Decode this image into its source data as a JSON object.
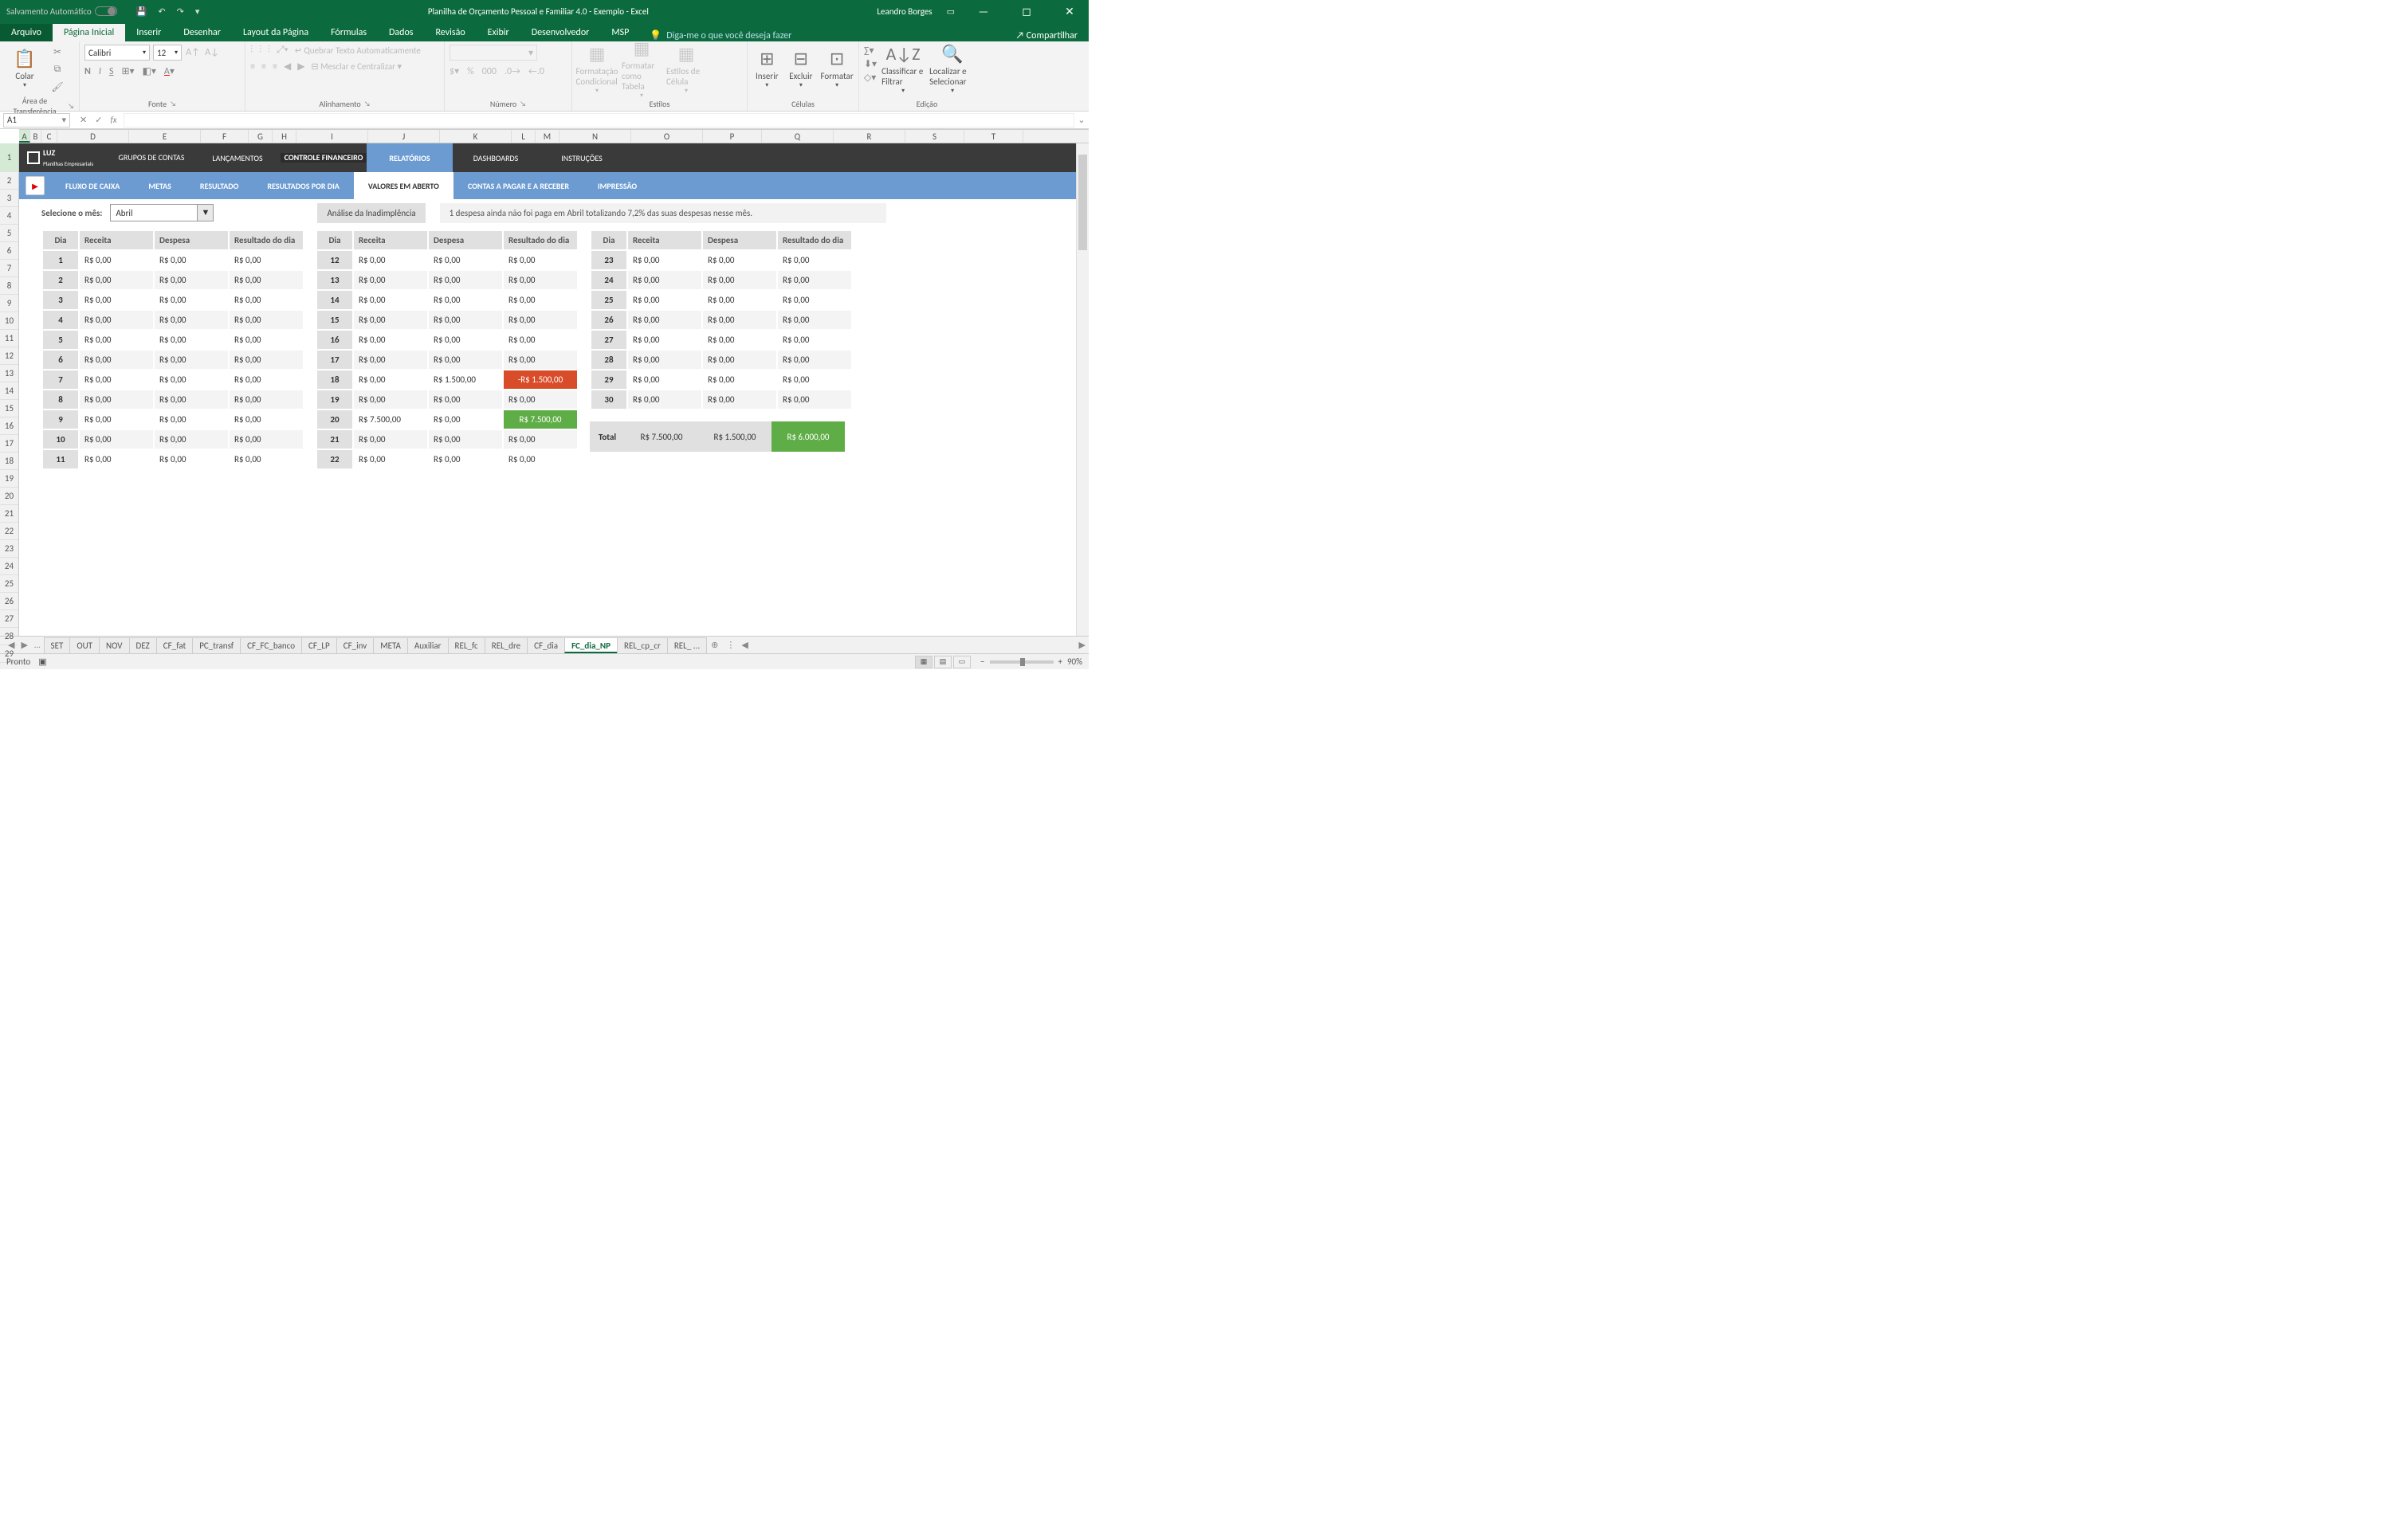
{
  "titlebar": {
    "autosave": "Salvamento Automático",
    "title": "Planilha de Orçamento Pessoal e Familiar 4.0 - Exemplo  -  Excel",
    "user": "Leandro Borges"
  },
  "ribbontabs": {
    "file": "Arquivo",
    "tabs": [
      "Página Inicial",
      "Inserir",
      "Desenhar",
      "Layout da Página",
      "Fórmulas",
      "Dados",
      "Revisão",
      "Exibir",
      "Desenvolvedor",
      "MSP"
    ],
    "active": 0,
    "tellme": "Diga-me o que você deseja fazer",
    "share": "Compartilhar"
  },
  "ribbon": {
    "clipboard": {
      "paste": "Colar",
      "label": "Área de Transferência"
    },
    "font": {
      "name": "Calibri",
      "size": "12",
      "label": "Fonte"
    },
    "align": {
      "wrap": "Quebrar Texto Automaticamente",
      "merge": "Mesclar e Centralizar",
      "label": "Alinhamento"
    },
    "number": {
      "label": "Número"
    },
    "styles": {
      "condfmt": "Formatação Condicional",
      "fmttable": "Formatar como Tabela",
      "cellstyle": "Estilos de Célula",
      "label": "Estilos"
    },
    "cells": {
      "insert": "Inserir",
      "delete": "Excluir",
      "format": "Formatar",
      "label": "Células"
    },
    "editing": {
      "sort": "Classificar e Filtrar",
      "find": "Localizar e Selecionar",
      "label": "Edição"
    }
  },
  "fnbar": {
    "namebox": "A1"
  },
  "cols": [
    "A",
    "B",
    "C",
    "D",
    "E",
    "F",
    "G",
    "H",
    "I",
    "J",
    "K",
    "L",
    "M",
    "N",
    "O",
    "P",
    "Q",
    "R",
    "S",
    "T"
  ],
  "rows": [
    "1",
    "2",
    "3",
    "4",
    "5",
    "6",
    "7",
    "8",
    "9",
    "10",
    "11",
    "12",
    "13",
    "14",
    "15",
    "16",
    "17",
    "18",
    "19",
    "20",
    "21",
    "22",
    "23",
    "24",
    "25",
    "26",
    "27",
    "28",
    "29"
  ],
  "nav1": {
    "logo": "LUZ",
    "logosub": "Planilhas Empresariais",
    "items": [
      "GRUPOS DE CONTAS",
      "LANÇAMENTOS",
      "CONTROLE FINANCEIRO",
      "RELATÓRIOS",
      "DASHBOARDS",
      "INSTRUÇÕES"
    ]
  },
  "nav2": {
    "items": [
      "FLUXO DE CAIXA",
      "METAS",
      "RESULTADO",
      "RESULTADOS POR DIA",
      "VALORES EM ABERTO",
      "CONTAS A PAGAR E A  RECEBER",
      "IMPRESSÃO"
    ],
    "active": 4
  },
  "filter": {
    "label": "Selecione o mês:",
    "value": "Abril",
    "analise": "Análise da Inadimplência",
    "msg": "1 despesa ainda não foi paga em Abril totalizando 7,2% das suas despesas nesse mês."
  },
  "headers": {
    "dia": "Dia",
    "rec": "Receita",
    "desp": "Despesa",
    "res": "Resultado do dia"
  },
  "table1": [
    {
      "d": "1",
      "r": "R$ 0,00",
      "e": "R$ 0,00",
      "s": "R$ 0,00"
    },
    {
      "d": "2",
      "r": "R$ 0,00",
      "e": "R$ 0,00",
      "s": "R$ 0,00"
    },
    {
      "d": "3",
      "r": "R$ 0,00",
      "e": "R$ 0,00",
      "s": "R$ 0,00"
    },
    {
      "d": "4",
      "r": "R$ 0,00",
      "e": "R$ 0,00",
      "s": "R$ 0,00"
    },
    {
      "d": "5",
      "r": "R$ 0,00",
      "e": "R$ 0,00",
      "s": "R$ 0,00"
    },
    {
      "d": "6",
      "r": "R$ 0,00",
      "e": "R$ 0,00",
      "s": "R$ 0,00"
    },
    {
      "d": "7",
      "r": "R$ 0,00",
      "e": "R$ 0,00",
      "s": "R$ 0,00"
    },
    {
      "d": "8",
      "r": "R$ 0,00",
      "e": "R$ 0,00",
      "s": "R$ 0,00"
    },
    {
      "d": "9",
      "r": "R$ 0,00",
      "e": "R$ 0,00",
      "s": "R$ 0,00"
    },
    {
      "d": "10",
      "r": "R$ 0,00",
      "e": "R$ 0,00",
      "s": "R$ 0,00"
    },
    {
      "d": "11",
      "r": "R$ 0,00",
      "e": "R$ 0,00",
      "s": "R$ 0,00"
    }
  ],
  "table2": [
    {
      "d": "12",
      "r": "R$ 0,00",
      "e": "R$ 0,00",
      "s": "R$ 0,00"
    },
    {
      "d": "13",
      "r": "R$ 0,00",
      "e": "R$ 0,00",
      "s": "R$ 0,00"
    },
    {
      "d": "14",
      "r": "R$ 0,00",
      "e": "R$ 0,00",
      "s": "R$ 0,00"
    },
    {
      "d": "15",
      "r": "R$ 0,00",
      "e": "R$ 0,00",
      "s": "R$ 0,00"
    },
    {
      "d": "16",
      "r": "R$ 0,00",
      "e": "R$ 0,00",
      "s": "R$ 0,00"
    },
    {
      "d": "17",
      "r": "R$ 0,00",
      "e": "R$ 0,00",
      "s": "R$ 0,00"
    },
    {
      "d": "18",
      "r": "R$ 0,00",
      "e": "R$ 1.500,00",
      "s": "-R$ 1.500,00",
      "neg": true
    },
    {
      "d": "19",
      "r": "R$ 0,00",
      "e": "R$ 0,00",
      "s": "R$ 0,00"
    },
    {
      "d": "20",
      "r": "R$ 7.500,00",
      "e": "R$ 0,00",
      "s": "R$ 7.500,00",
      "pos": true
    },
    {
      "d": "21",
      "r": "R$ 0,00",
      "e": "R$ 0,00",
      "s": "R$ 0,00"
    },
    {
      "d": "22",
      "r": "R$ 0,00",
      "e": "R$ 0,00",
      "s": "R$ 0,00"
    }
  ],
  "table3": [
    {
      "d": "23",
      "r": "R$ 0,00",
      "e": "R$ 0,00",
      "s": "R$ 0,00"
    },
    {
      "d": "24",
      "r": "R$ 0,00",
      "e": "R$ 0,00",
      "s": "R$ 0,00"
    },
    {
      "d": "25",
      "r": "R$ 0,00",
      "e": "R$ 0,00",
      "s": "R$ 0,00"
    },
    {
      "d": "26",
      "r": "R$ 0,00",
      "e": "R$ 0,00",
      "s": "R$ 0,00"
    },
    {
      "d": "27",
      "r": "R$ 0,00",
      "e": "R$ 0,00",
      "s": "R$ 0,00"
    },
    {
      "d": "28",
      "r": "R$ 0,00",
      "e": "R$ 0,00",
      "s": "R$ 0,00"
    },
    {
      "d": "29",
      "r": "R$ 0,00",
      "e": "R$ 0,00",
      "s": "R$ 0,00"
    },
    {
      "d": "30",
      "r": "R$ 0,00",
      "e": "R$ 0,00",
      "s": "R$ 0,00"
    }
  ],
  "total": {
    "label": "Total",
    "rec": "R$ 7.500,00",
    "desp": "R$ 1.500,00",
    "res": "R$ 6.000,00"
  },
  "sheettabs": {
    "tabs": [
      "SET",
      "OUT",
      "NOV",
      "DEZ",
      "CF_fat",
      "PC_transf",
      "CF_FC_banco",
      "CF_LP",
      "CF_inv",
      "META",
      "Auxiliar",
      "REL_fc",
      "REL_dre",
      "CF_dia",
      "FC_dia_NP",
      "REL_cp_cr",
      "REL_ ..."
    ],
    "active": 14
  },
  "status": {
    "ready": "Pronto",
    "zoom": "90%"
  }
}
